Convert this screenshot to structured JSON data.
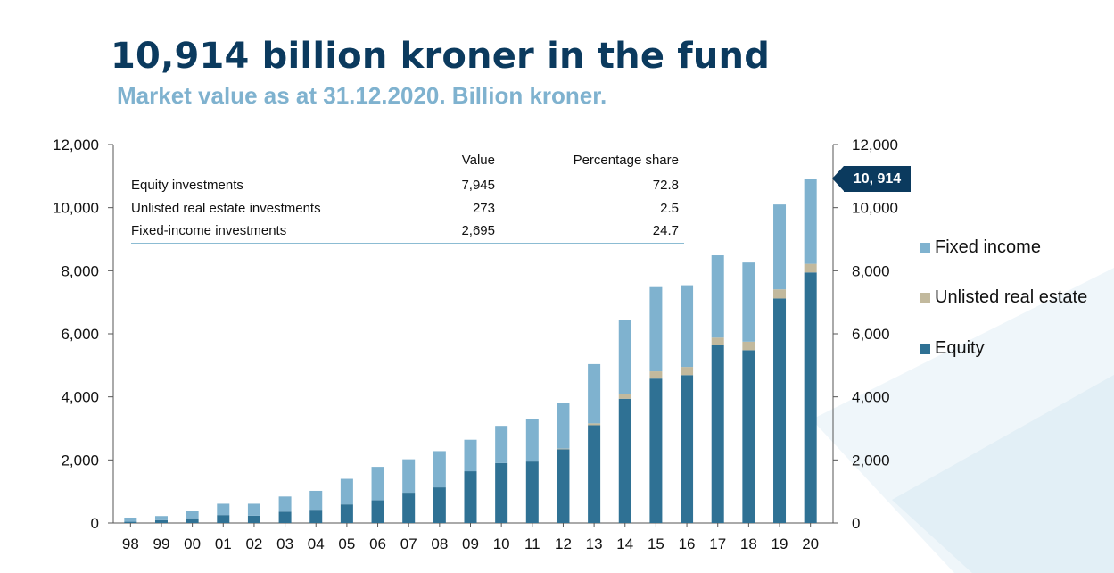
{
  "header": {
    "title": "10,914 billion kroner in the fund",
    "subtitle": "Market value as at 31.12.2020. Billion kroner."
  },
  "table": {
    "headers": [
      "",
      "Value",
      "Percentage share"
    ],
    "rows": [
      {
        "label": "Equity investments",
        "value": "7,945",
        "share": "72.8"
      },
      {
        "label": "Unlisted real estate investments",
        "value": "273",
        "share": "2.5"
      },
      {
        "label": "Fixed-income investments",
        "value": "2,695",
        "share": "24.7"
      }
    ]
  },
  "callout": {
    "label": "10, 914"
  },
  "legend": [
    {
      "name": "Fixed income",
      "color": "#7fb2cf"
    },
    {
      "name": "Unlisted real estate",
      "color": "#c2b99d"
    },
    {
      "name": "Equity",
      "color": "#2f7194"
    }
  ],
  "chart_data": {
    "type": "bar",
    "stacked": true,
    "categories": [
      "98",
      "99",
      "00",
      "01",
      "02",
      "03",
      "04",
      "05",
      "06",
      "07",
      "08",
      "09",
      "10",
      "11",
      "12",
      "13",
      "14",
      "15",
      "16",
      "17",
      "18",
      "19",
      "20"
    ],
    "series": [
      {
        "name": "Equity",
        "color": "#2f7194",
        "values": [
          40,
          90,
          150,
          250,
          230,
          360,
          420,
          590,
          720,
          960,
          1130,
          1640,
          1900,
          1950,
          2340,
          3100,
          3940,
          4580,
          4690,
          5650,
          5480,
          7120,
          7945
        ]
      },
      {
        "name": "Unlisted real estate",
        "color": "#c2b99d",
        "values": [
          0,
          0,
          0,
          0,
          0,
          0,
          0,
          0,
          0,
          0,
          0,
          0,
          0,
          0,
          20,
          60,
          140,
          230,
          260,
          230,
          270,
          290,
          273
        ]
      },
      {
        "name": "Fixed income",
        "color": "#7fb2cf",
        "values": [
          130,
          130,
          240,
          360,
          380,
          480,
          600,
          810,
          1060,
          1060,
          1150,
          1000,
          1180,
          1360,
          1460,
          1880,
          2350,
          2670,
          2590,
          2610,
          2510,
          2690,
          2695
        ]
      }
    ],
    "ylim": [
      0,
      12000
    ],
    "yticks": [
      0,
      2000,
      4000,
      6000,
      8000,
      10000,
      12000
    ],
    "ytick_labels": [
      "0",
      "2,000",
      "4,000",
      "6,000",
      "8,000",
      "10,000",
      "12,000"
    ],
    "grid": false,
    "legend_position": "right"
  }
}
